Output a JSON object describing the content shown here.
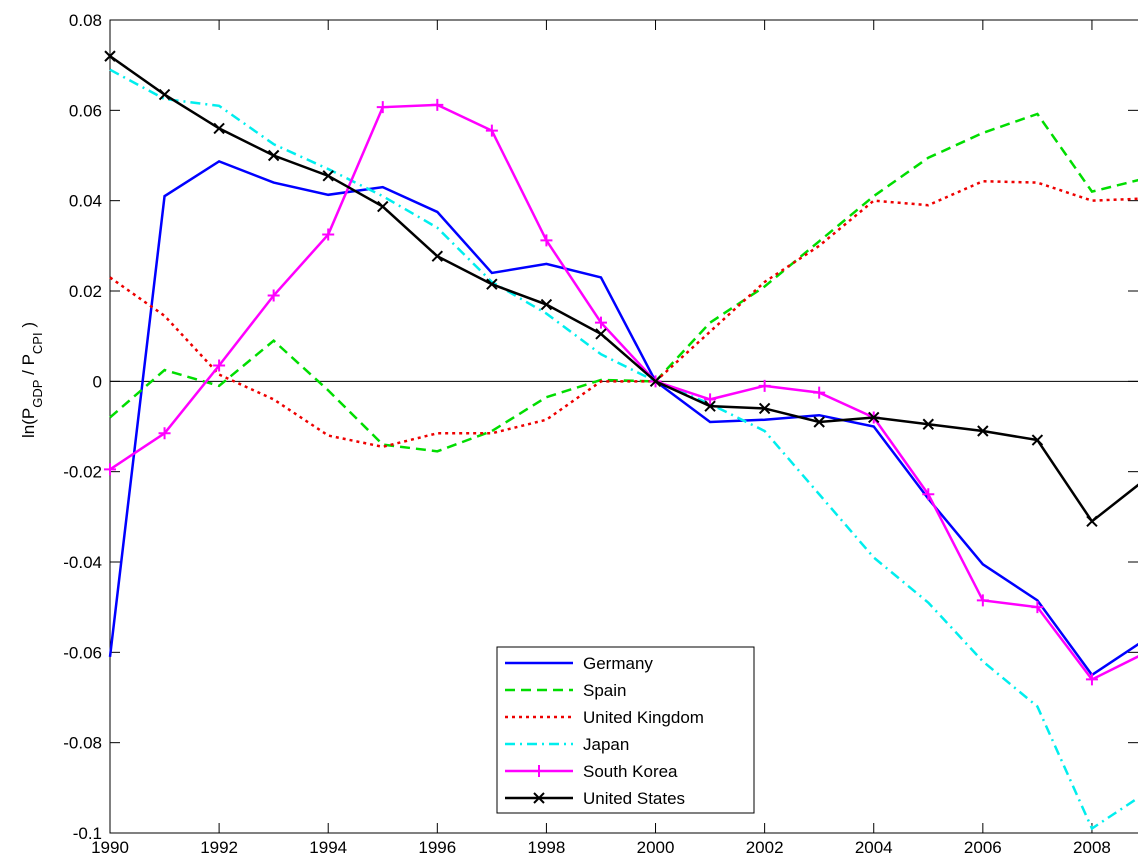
{
  "chart_data": {
    "type": "line",
    "ylabel_parts": [
      "ln(P",
      "GDP",
      " / P",
      "CPI",
      " )"
    ],
    "x": [
      1990,
      1991,
      1992,
      1993,
      1994,
      1995,
      1996,
      1997,
      1998,
      1999,
      2000,
      2001,
      2002,
      2003,
      2004,
      2005,
      2006,
      2007,
      2008,
      2009
    ],
    "xlim": [
      1990,
      2009
    ],
    "xticks": [
      1990,
      1992,
      1994,
      1996,
      1998,
      2000,
      2002,
      2004,
      2006,
      2008
    ],
    "ylim": [
      -0.1,
      0.08
    ],
    "yticks": [
      -0.1,
      -0.08,
      -0.06,
      -0.04,
      -0.02,
      0,
      0.02,
      0.04,
      0.06,
      0.08
    ],
    "zero_line": true,
    "legend_loc": "lower center",
    "series": [
      {
        "name": "Germany",
        "color": "#0000ff",
        "dash": "solid",
        "marker": "none",
        "values": [
          -0.061,
          0.041,
          0.0487,
          0.044,
          0.0413,
          0.043,
          0.0375,
          0.024,
          0.026,
          0.023,
          0,
          -0.009,
          -0.0085,
          -0.0075,
          -0.01,
          -0.026,
          -0.0405,
          -0.0485,
          -0.065,
          -0.057
        ]
      },
      {
        "name": "Spain",
        "color": "#00dd00",
        "dash": "dashed",
        "marker": "none",
        "values": [
          -0.008,
          0.0025,
          -0.001,
          0.009,
          -0.002,
          -0.014,
          -0.0155,
          -0.011,
          -0.0035,
          0.0003,
          0,
          0.013,
          0.021,
          0.031,
          0.041,
          0.0495,
          0.055,
          0.0592,
          0.042,
          0.045
        ]
      },
      {
        "name": "United Kingdom",
        "color": "#ee0000",
        "dash": "dotted",
        "marker": "none",
        "values": [
          0.023,
          0.0145,
          0.0015,
          -0.004,
          -0.012,
          -0.0145,
          -0.0115,
          -0.0115,
          -0.0085,
          0,
          0,
          0.011,
          0.022,
          0.03,
          0.04,
          0.039,
          0.0443,
          0.044,
          0.04,
          0.0405
        ]
      },
      {
        "name": "Japan",
        "color": "#00eeee",
        "dash": "dashdot",
        "marker": "none",
        "values": [
          0.069,
          0.0625,
          0.061,
          0.0525,
          0.047,
          0.041,
          0.034,
          0.022,
          0.015,
          0.006,
          0,
          -0.005,
          -0.011,
          -0.025,
          -0.039,
          -0.049,
          -0.062,
          -0.072,
          -0.099,
          -0.091
        ]
      },
      {
        "name": "South Korea",
        "color": "#ff00ff",
        "dash": "solid",
        "marker": "plus",
        "values": [
          -0.0195,
          -0.0115,
          0.0035,
          0.019,
          0.0325,
          0.0607,
          0.0612,
          0.0555,
          0.0312,
          0.013,
          0,
          -0.004,
          -0.001,
          -0.0025,
          -0.008,
          -0.025,
          -0.0485,
          -0.05,
          -0.066,
          -0.06
        ]
      },
      {
        "name": "United States",
        "color": "#000000",
        "dash": "solid",
        "marker": "x",
        "values": [
          0.072,
          0.0635,
          0.056,
          0.05,
          0.0455,
          0.0387,
          0.0277,
          0.0215,
          0.017,
          0.0105,
          0,
          -0.0055,
          -0.006,
          -0.009,
          -0.008,
          -0.0095,
          -0.011,
          -0.013,
          -0.031,
          -0.0215
        ]
      }
    ]
  }
}
